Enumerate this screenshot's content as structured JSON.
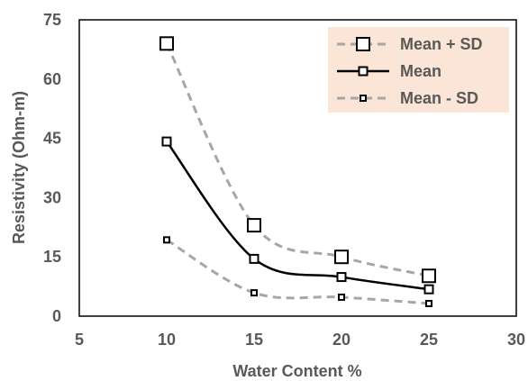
{
  "chart_data": {
    "type": "line",
    "xlabel": "Water Content %",
    "ylabel": "Resistivity (Ohm-m)",
    "xlim": [
      5,
      30
    ],
    "ylim": [
      0,
      75
    ],
    "x_ticks": [
      "5",
      "10",
      "15",
      "20",
      "25",
      "30"
    ],
    "y_ticks": [
      "0",
      "15",
      "30",
      "45",
      "60",
      "75"
    ],
    "x": [
      10,
      15,
      20,
      25
    ],
    "grid": false,
    "legend_position": "top-right",
    "legend_background": "#fbe5d6",
    "series": [
      {
        "name": "Mean + SD",
        "values": [
          69,
          23,
          15,
          10.2
        ],
        "color": "#a6a6a6",
        "line": "dashed",
        "marker": "square-large",
        "marker_color": "#000000"
      },
      {
        "name": "Mean",
        "values": [
          44.2,
          14.5,
          9.9,
          6.8
        ],
        "color": "#000000",
        "line": "solid",
        "marker": "square-medium",
        "marker_color": "#000000"
      },
      {
        "name": "Mean - SD",
        "values": [
          19.3,
          5.9,
          4.8,
          3.2
        ],
        "color": "#a6a6a6",
        "line": "dashed",
        "marker": "square-small",
        "marker_color": "#000000"
      }
    ]
  }
}
